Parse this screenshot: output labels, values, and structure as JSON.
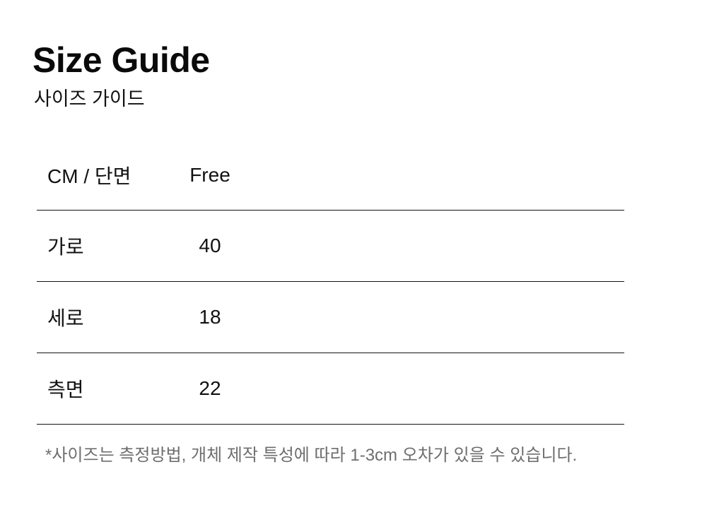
{
  "page": {
    "title": "Size Guide",
    "subtitle": "사이즈 가이드"
  },
  "size_table": {
    "columns": [
      "CM / 단면",
      "Free"
    ],
    "rows": [
      {
        "label": "가로",
        "value": "40"
      },
      {
        "label": "세로",
        "value": "18"
      },
      {
        "label": "측면",
        "value": "22"
      }
    ]
  },
  "footnote": "*사이즈는 측정방법, 개체 제작 특성에 따라 1-3cm 오차가 있을 수 있습니다.",
  "colors": {
    "text": "#111111",
    "line": "#141414",
    "footnote_text": "#6e6e6e",
    "background": "#ffffff"
  }
}
